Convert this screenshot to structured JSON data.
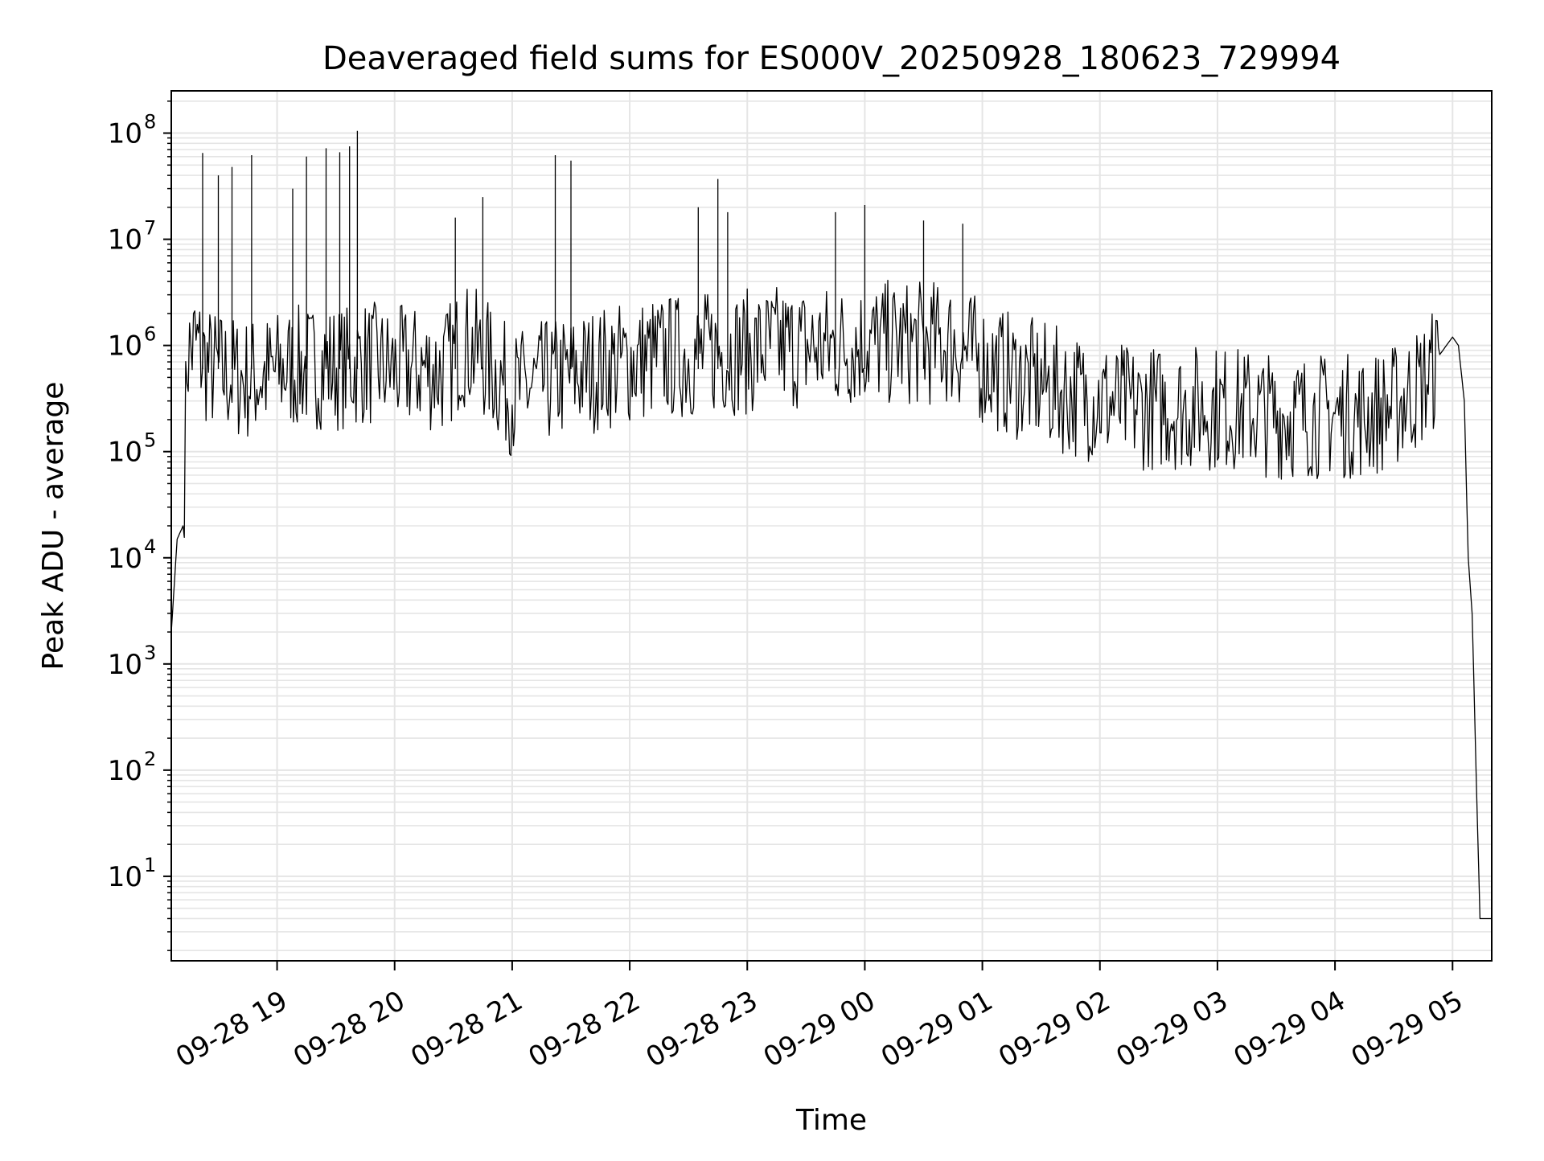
{
  "chart_data": {
    "type": "line",
    "title": "Deaveraged field sums for ES000V_20250928_180623_729994",
    "xlabel": "Time",
    "ylabel": "Peak ADU - average",
    "y_scale": "log",
    "xlim": [
      "2025-09-28 18:06",
      "2025-09-29 05:20"
    ],
    "ylim": [
      1.6,
      250000000
    ],
    "grid": true,
    "line_color": "#000000",
    "grid_color": "#e5e5e5",
    "x_ticks": [
      {
        "value": "2025-09-28 19:00",
        "label": "09-28 19"
      },
      {
        "value": "2025-09-28 20:00",
        "label": "09-28 20"
      },
      {
        "value": "2025-09-28 21:00",
        "label": "09-28 21"
      },
      {
        "value": "2025-09-28 22:00",
        "label": "09-28 22"
      },
      {
        "value": "2025-09-28 23:00",
        "label": "09-28 23"
      },
      {
        "value": "2025-09-29 00:00",
        "label": "09-29 00"
      },
      {
        "value": "2025-09-29 01:00",
        "label": "09-29 01"
      },
      {
        "value": "2025-09-29 02:00",
        "label": "09-29 02"
      },
      {
        "value": "2025-09-29 03:00",
        "label": "09-29 03"
      },
      {
        "value": "2025-09-29 04:00",
        "label": "09-29 04"
      },
      {
        "value": "2025-09-29 05:00",
        "label": "09-29 05"
      }
    ],
    "y_ticks": [
      {
        "value": 10,
        "base": "10",
        "exp": "1"
      },
      {
        "value": 100,
        "base": "10",
        "exp": "2"
      },
      {
        "value": 1000,
        "base": "10",
        "exp": "3"
      },
      {
        "value": 10000,
        "base": "10",
        "exp": "4"
      },
      {
        "value": 100000,
        "base": "10",
        "exp": "5"
      },
      {
        "value": 1000000,
        "base": "10",
        "exp": "6"
      },
      {
        "value": 10000000,
        "base": "10",
        "exp": "7"
      },
      {
        "value": 100000000,
        "base": "10",
        "exp": "8"
      }
    ],
    "series": [
      {
        "x": [
          "2025-09-28 18:06",
          "2025-09-28 18:09",
          "2025-09-28 18:12",
          "2025-09-28 18:14",
          "2025-09-28 18:18",
          "2025-09-28 18:25",
          "2025-09-28 18:35",
          "2025-09-28 18:45",
          "2025-09-28 18:55",
          "2025-09-28 19:05",
          "2025-09-28 19:15",
          "2025-09-28 19:25",
          "2025-09-28 19:35",
          "2025-09-28 19:45",
          "2025-09-28 19:55",
          "2025-09-28 20:05",
          "2025-09-28 20:15",
          "2025-09-28 20:25",
          "2025-09-28 20:35",
          "2025-09-28 20:45",
          "2025-09-28 21:00",
          "2025-09-28 21:15",
          "2025-09-28 21:30",
          "2025-09-28 21:45",
          "2025-09-28 22:00",
          "2025-09-28 22:15",
          "2025-09-28 22:30",
          "2025-09-28 22:45",
          "2025-09-28 23:00",
          "2025-09-28 23:15",
          "2025-09-28 23:30",
          "2025-09-28 23:45",
          "2025-09-29 00:00",
          "2025-09-29 00:15",
          "2025-09-29 00:30",
          "2025-09-29 00:45",
          "2025-09-29 01:00",
          "2025-09-29 01:15",
          "2025-09-29 01:30",
          "2025-09-29 01:45",
          "2025-09-29 02:00",
          "2025-09-29 02:15",
          "2025-09-29 02:30",
          "2025-09-29 02:45",
          "2025-09-29 03:00",
          "2025-09-29 03:15",
          "2025-09-29 03:30",
          "2025-09-29 03:45",
          "2025-09-29 04:00",
          "2025-09-29 04:15",
          "2025-09-29 04:30",
          "2025-09-29 04:45",
          "2025-09-29 05:00",
          "2025-09-29 05:03",
          "2025-09-29 05:06",
          "2025-09-29 05:08",
          "2025-09-29 05:10",
          "2025-09-29 05:12",
          "2025-09-29 05:14",
          "2025-09-29 05:16",
          "2025-09-29 05:20"
        ],
        "y": [
          2000,
          15000,
          20000,
          900000,
          1200000,
          700000,
          600000,
          550000,
          600000,
          700000,
          700000,
          750000,
          700000,
          800000,
          700000,
          700000,
          700000,
          650000,
          1200000,
          900000,
          400000,
          500000,
          600000,
          700000,
          800000,
          900000,
          900000,
          1000000,
          1000000,
          1100000,
          1100000,
          1100000,
          1200000,
          1200000,
          1200000,
          1200000,
          800000,
          600000,
          500000,
          400000,
          350000,
          300000,
          300000,
          300000,
          300000,
          280000,
          250000,
          250000,
          250000,
          250000,
          300000,
          500000,
          1200000,
          1000000,
          300000,
          10000,
          3000,
          100,
          4,
          4,
          4
        ]
      }
    ],
    "spikes": [
      {
        "x": "2025-09-28 18:22",
        "y": 65000000
      },
      {
        "x": "2025-09-28 18:30",
        "y": 40000000
      },
      {
        "x": "2025-09-28 18:37",
        "y": 48000000
      },
      {
        "x": "2025-09-28 18:47",
        "y": 62000000
      },
      {
        "x": "2025-09-28 19:08",
        "y": 30000000
      },
      {
        "x": "2025-09-28 19:15",
        "y": 60000000
      },
      {
        "x": "2025-09-28 19:25",
        "y": 72000000
      },
      {
        "x": "2025-09-28 19:32",
        "y": 66000000
      },
      {
        "x": "2025-09-28 19:37",
        "y": 75000000
      },
      {
        "x": "2025-09-28 19:41",
        "y": 105000000
      },
      {
        "x": "2025-09-28 20:31",
        "y": 16000000
      },
      {
        "x": "2025-09-28 20:45",
        "y": 25000000
      },
      {
        "x": "2025-09-28 21:22",
        "y": 62000000
      },
      {
        "x": "2025-09-28 21:30",
        "y": 55000000
      },
      {
        "x": "2025-09-28 22:35",
        "y": 20000000
      },
      {
        "x": "2025-09-28 22:45",
        "y": 37000000
      },
      {
        "x": "2025-09-28 22:50",
        "y": 18000000
      },
      {
        "x": "2025-09-28 23:45",
        "y": 18000000
      },
      {
        "x": "2025-09-29 00:00",
        "y": 21000000
      },
      {
        "x": "2025-09-29 00:30",
        "y": 15000000
      },
      {
        "x": "2025-09-29 00:50",
        "y": 14000000
      }
    ]
  }
}
